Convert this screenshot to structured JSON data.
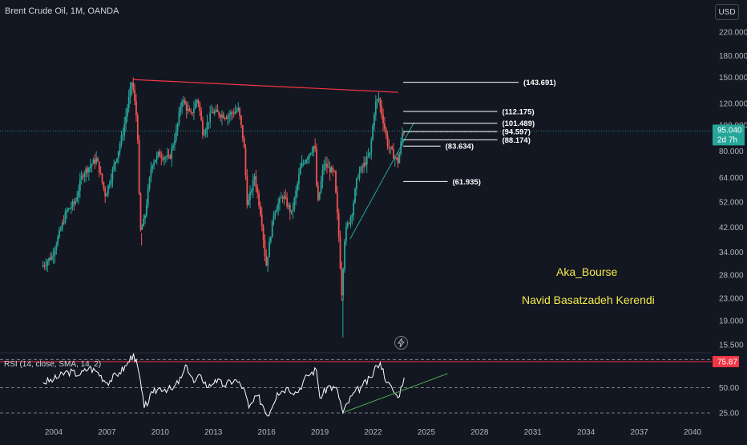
{
  "header": {
    "symbol_title": "Brent Crude Oil, 1M, OANDA",
    "currency_label": "USD"
  },
  "price_axis": {
    "labels": [
      "220.000",
      "180.000",
      "150.000",
      "120.000",
      "100.000",
      "80.000",
      "64.000",
      "52.000",
      "42.000",
      "34.000",
      "28.000",
      "23.000",
      "19.000",
      "15.500"
    ],
    "values": [
      220,
      180,
      150,
      120,
      100,
      80,
      64,
      52,
      42,
      34,
      28,
      23,
      19,
      15.5
    ],
    "current_price": "95.040",
    "countdown": "2d 7h"
  },
  "rsi_panel": {
    "title": "RSI (14, close, SMA, 14, 2)",
    "axis_labels": [
      "50.00",
      "25.00"
    ],
    "axis_values": [
      50,
      25
    ],
    "current_value": "75.87"
  },
  "time_axis": {
    "labels": [
      "2004",
      "2007",
      "2010",
      "2013",
      "2016",
      "2019",
      "2022",
      "2025",
      "2028",
      "2031",
      "2034",
      "2037",
      "2040"
    ],
    "years": [
      2004,
      2007,
      2010,
      2013,
      2016,
      2019,
      2022,
      2025,
      2028,
      2031,
      2034,
      2037,
      2040
    ]
  },
  "levels": [
    {
      "label": "(143.691)",
      "value": 143.691
    },
    {
      "label": "(112.175)",
      "value": 112.175
    },
    {
      "label": "(101.489)",
      "value": 101.489
    },
    {
      "label": "(94.597)",
      "value": 94.597
    },
    {
      "label": "(88.174)",
      "value": 88.174
    },
    {
      "label": "(83.634)",
      "value": 83.634
    },
    {
      "label": "(61.935)",
      "value": 61.935
    }
  ],
  "annotations": {
    "author_handle": "Aka_Bourse",
    "author_name": "Navid Basatzadeh Kerendi"
  },
  "colors": {
    "background": "#131722",
    "up": "#26a69a",
    "down": "#ef5350",
    "resistance_line": "#f23645",
    "support_line": "#26a69a",
    "level_line": "#ffffff",
    "rsi_line": "#ffffff",
    "rsi_overbought_line": "#f23645",
    "rsi_trend_line": "#4caf50",
    "price_badge": "#26a69a",
    "rsi_badge": "#f23645",
    "current_price_line": "#26a69a",
    "annotation_text": "#f5e94a"
  },
  "chart_data": {
    "type": "candlestick",
    "title": "Brent Crude Oil, 1M, OANDA",
    "y_scale": "log",
    "ylim": [
      15.5,
      220
    ],
    "xlim": [
      2003.0,
      2041.0
    ],
    "price_path": [
      [
        2003.4,
        30
      ],
      [
        2004.0,
        33
      ],
      [
        2004.8,
        48
      ],
      [
        2005.3,
        52
      ],
      [
        2005.7,
        66
      ],
      [
        2006.5,
        75
      ],
      [
        2007.0,
        55
      ],
      [
        2007.6,
        75
      ],
      [
        2008.0,
        95
      ],
      [
        2008.5,
        146
      ],
      [
        2008.8,
        100
      ],
      [
        2008.95,
        40
      ],
      [
        2009.2,
        45
      ],
      [
        2009.6,
        72
      ],
      [
        2010.0,
        78
      ],
      [
        2010.6,
        75
      ],
      [
        2011.0,
        95
      ],
      [
        2011.3,
        125
      ],
      [
        2011.8,
        108
      ],
      [
        2012.2,
        126
      ],
      [
        2012.5,
        93
      ],
      [
        2013.0,
        112
      ],
      [
        2013.8,
        108
      ],
      [
        2014.5,
        114
      ],
      [
        2014.8,
        85
      ],
      [
        2015.0,
        50
      ],
      [
        2015.4,
        65
      ],
      [
        2015.8,
        45
      ],
      [
        2016.05,
        30
      ],
      [
        2016.5,
        48
      ],
      [
        2017.0,
        55
      ],
      [
        2017.5,
        47
      ],
      [
        2018.0,
        70
      ],
      [
        2018.8,
        85
      ],
      [
        2018.95,
        50
      ],
      [
        2019.3,
        72
      ],
      [
        2019.9,
        66
      ],
      [
        2020.2,
        35
      ],
      [
        2020.3,
        23
      ],
      [
        2020.5,
        40
      ],
      [
        2020.9,
        48
      ],
      [
        2021.2,
        65
      ],
      [
        2021.9,
        78
      ],
      [
        2022.2,
        120
      ],
      [
        2022.4,
        125
      ],
      [
        2022.7,
        100
      ],
      [
        2022.9,
        85
      ],
      [
        2023.2,
        78
      ],
      [
        2023.5,
        73
      ],
      [
        2023.75,
        95
      ]
    ],
    "level_lines": [
      143.691,
      112.175,
      101.489,
      94.597,
      88.174,
      83.634,
      61.935
    ],
    "resistance_trendline": [
      [
        2008.5,
        147
      ],
      [
        2023.4,
        132
      ]
    ],
    "support_trendline": [
      [
        2020.7,
        38
      ],
      [
        2024.3,
        102
      ]
    ],
    "rsi": {
      "ylim": [
        20,
        90
      ],
      "overbought": 75.87,
      "points": [
        [
          2003.4,
          55
        ],
        [
          2004.0,
          58
        ],
        [
          2004.8,
          66
        ],
        [
          2005.5,
          63
        ],
        [
          2006.0,
          70
        ],
        [
          2006.5,
          65
        ],
        [
          2007.0,
          55
        ],
        [
          2007.7,
          65
        ],
        [
          2008.1,
          72
        ],
        [
          2008.5,
          84
        ],
        [
          2008.8,
          65
        ],
        [
          2009.1,
          30
        ],
        [
          2009.6,
          45
        ],
        [
          2010.0,
          50
        ],
        [
          2010.7,
          48
        ],
        [
          2011.2,
          60
        ],
        [
          2011.5,
          72
        ],
        [
          2011.9,
          55
        ],
        [
          2012.3,
          62
        ],
        [
          2012.7,
          50
        ],
        [
          2013.1,
          58
        ],
        [
          2013.6,
          52
        ],
        [
          2014.2,
          58
        ],
        [
          2014.7,
          50
        ],
        [
          2015.0,
          30
        ],
        [
          2015.5,
          42
        ],
        [
          2015.8,
          32
        ],
        [
          2016.05,
          22
        ],
        [
          2016.6,
          45
        ],
        [
          2017.2,
          50
        ],
        [
          2017.7,
          45
        ],
        [
          2018.3,
          62
        ],
        [
          2018.8,
          68
        ],
        [
          2019.0,
          40
        ],
        [
          2019.5,
          52
        ],
        [
          2020.0,
          47
        ],
        [
          2020.3,
          25
        ],
        [
          2020.8,
          42
        ],
        [
          2021.4,
          52
        ],
        [
          2021.9,
          60
        ],
        [
          2022.2,
          72
        ],
        [
          2022.4,
          75
        ],
        [
          2022.8,
          55
        ],
        [
          2023.1,
          48
        ],
        [
          2023.4,
          40
        ],
        [
          2023.75,
          60
        ]
      ],
      "trendline": [
        [
          2020.4,
          26
        ],
        [
          2026.2,
          64
        ]
      ]
    }
  }
}
